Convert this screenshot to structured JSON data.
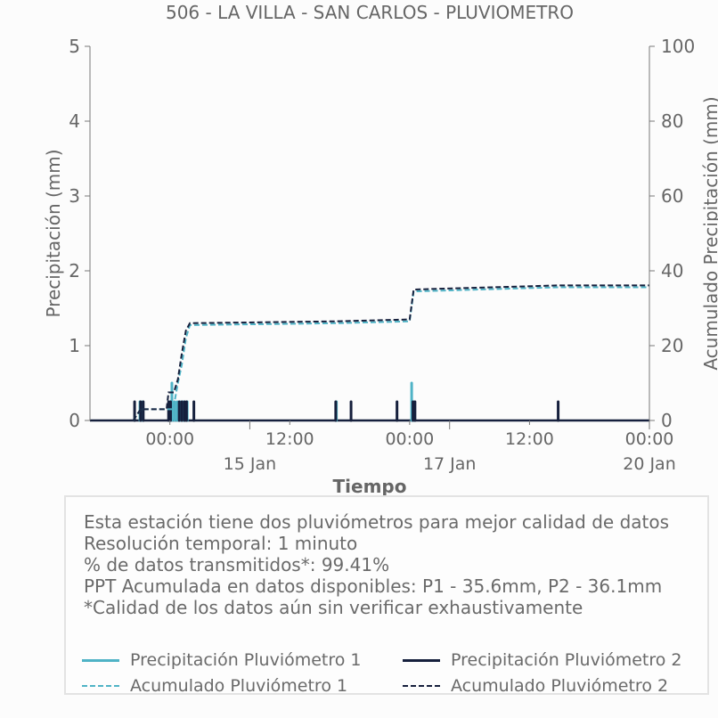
{
  "chart_data": {
    "type": "bar+line",
    "title": "506 - LA VILLA - SAN CARLOS - PLUVIOMETRO",
    "xlabel": "Tiempo",
    "ylabel_left": "Precipitación (mm)",
    "ylabel_right": "Acumulado Precipitación (mm)",
    "ylim_left": [
      0,
      5
    ],
    "ylim_right": [
      0,
      100
    ],
    "yticks_left": [
      "0",
      "1",
      "2",
      "3",
      "4",
      "5"
    ],
    "yticks_right": [
      "0",
      "20",
      "40",
      "60",
      "80",
      "100"
    ],
    "xlim_hours": [
      -12,
      72
    ],
    "xticks": [
      {
        "t": 0,
        "label": "00:00"
      },
      {
        "t": 18,
        "label": "12:00"
      },
      {
        "t": 36,
        "label": "00:00"
      },
      {
        "t": 54,
        "label": "12:00"
      },
      {
        "t": 72,
        "label": "00:00"
      }
    ],
    "xticks_major": [
      {
        "t": 12,
        "label": "15 Jan"
      },
      {
        "t": 42,
        "label": "17 Jan"
      },
      {
        "t": 72,
        "label": "20 Jan"
      }
    ],
    "colors": {
      "p1": "#4fb3c6",
      "p2": "#16203d",
      "axis": "#777777"
    },
    "series": [
      {
        "name": "Precipitación Pluviómetro 1",
        "kind": "bar",
        "axis": "left",
        "color": "#4fb3c6",
        "x": [
          -4.5,
          -4.1,
          0.0,
          0.3,
          0.7,
          1.1,
          1.5,
          2.0,
          2.6,
          25.0,
          36.3,
          36.6
        ],
        "y": [
          0.25,
          0.25,
          0.25,
          0.5,
          0.25,
          0.25,
          0.25,
          0.25,
          0.25,
          0.25,
          0.5,
          0.25
        ]
      },
      {
        "name": "Precipitación Pluviómetro 2",
        "kind": "bar",
        "axis": "left",
        "color": "#16203d",
        "x": [
          -5.3,
          -4.4,
          -4.0,
          -0.2,
          0.1,
          1.4,
          1.8,
          2.2,
          2.5,
          3.6,
          24.9,
          27.2,
          34.1,
          36.5,
          36.8,
          58.3
        ],
        "y": [
          0.25,
          0.25,
          0.25,
          0.25,
          0.25,
          0.25,
          0.25,
          0.25,
          0.25,
          0.25,
          0.25,
          0.25,
          0.25,
          0.25,
          0.25,
          0.25
        ]
      },
      {
        "name": "Acumulado Pluviómetro 1",
        "kind": "line",
        "dash": true,
        "axis": "right",
        "color": "#4fb3c6",
        "x": [
          -5.5,
          -4.4,
          -1.0,
          0.5,
          1.2,
          1.8,
          2.4,
          3.0,
          25.0,
          36.0,
          36.6,
          58.3,
          72.0
        ],
        "y": [
          0,
          3,
          3,
          3,
          10,
          15,
          22,
          25.5,
          26,
          26.5,
          34.5,
          35.6,
          35.6
        ]
      },
      {
        "name": "Acumulado Pluviómetro 2",
        "kind": "line",
        "dash": true,
        "axis": "right",
        "color": "#16203d",
        "x": [
          -5.5,
          -4.4,
          -0.5,
          -0.2,
          0.6,
          1.2,
          1.8,
          2.4,
          3.0,
          25.0,
          36.0,
          36.6,
          58.3,
          72.0
        ],
        "y": [
          0,
          3,
          3,
          7.5,
          7.5,
          11,
          18,
          24,
          26,
          26.5,
          27,
          35,
          36.1,
          36.1
        ]
      }
    ]
  },
  "info": {
    "lines": [
      "Esta estación tiene dos pluviómetros para mejor calidad de datos",
      "Resolución temporal: 1 minuto",
      "% de datos transmitidos*: 99.41%",
      "PPT Acumulada en datos disponibles: P1 - 35.6mm, P2 - 36.1mm",
      "*Calidad de los datos aún sin verificar exhaustivamente"
    ]
  },
  "legend": {
    "p1_precip": "Precipitación Pluviómetro 1",
    "p2_precip": "Precipitación Pluviómetro 2",
    "p1_acum": "Acumulado Pluviómetro 1",
    "p2_acum": "Acumulado Pluviómetro 2"
  }
}
